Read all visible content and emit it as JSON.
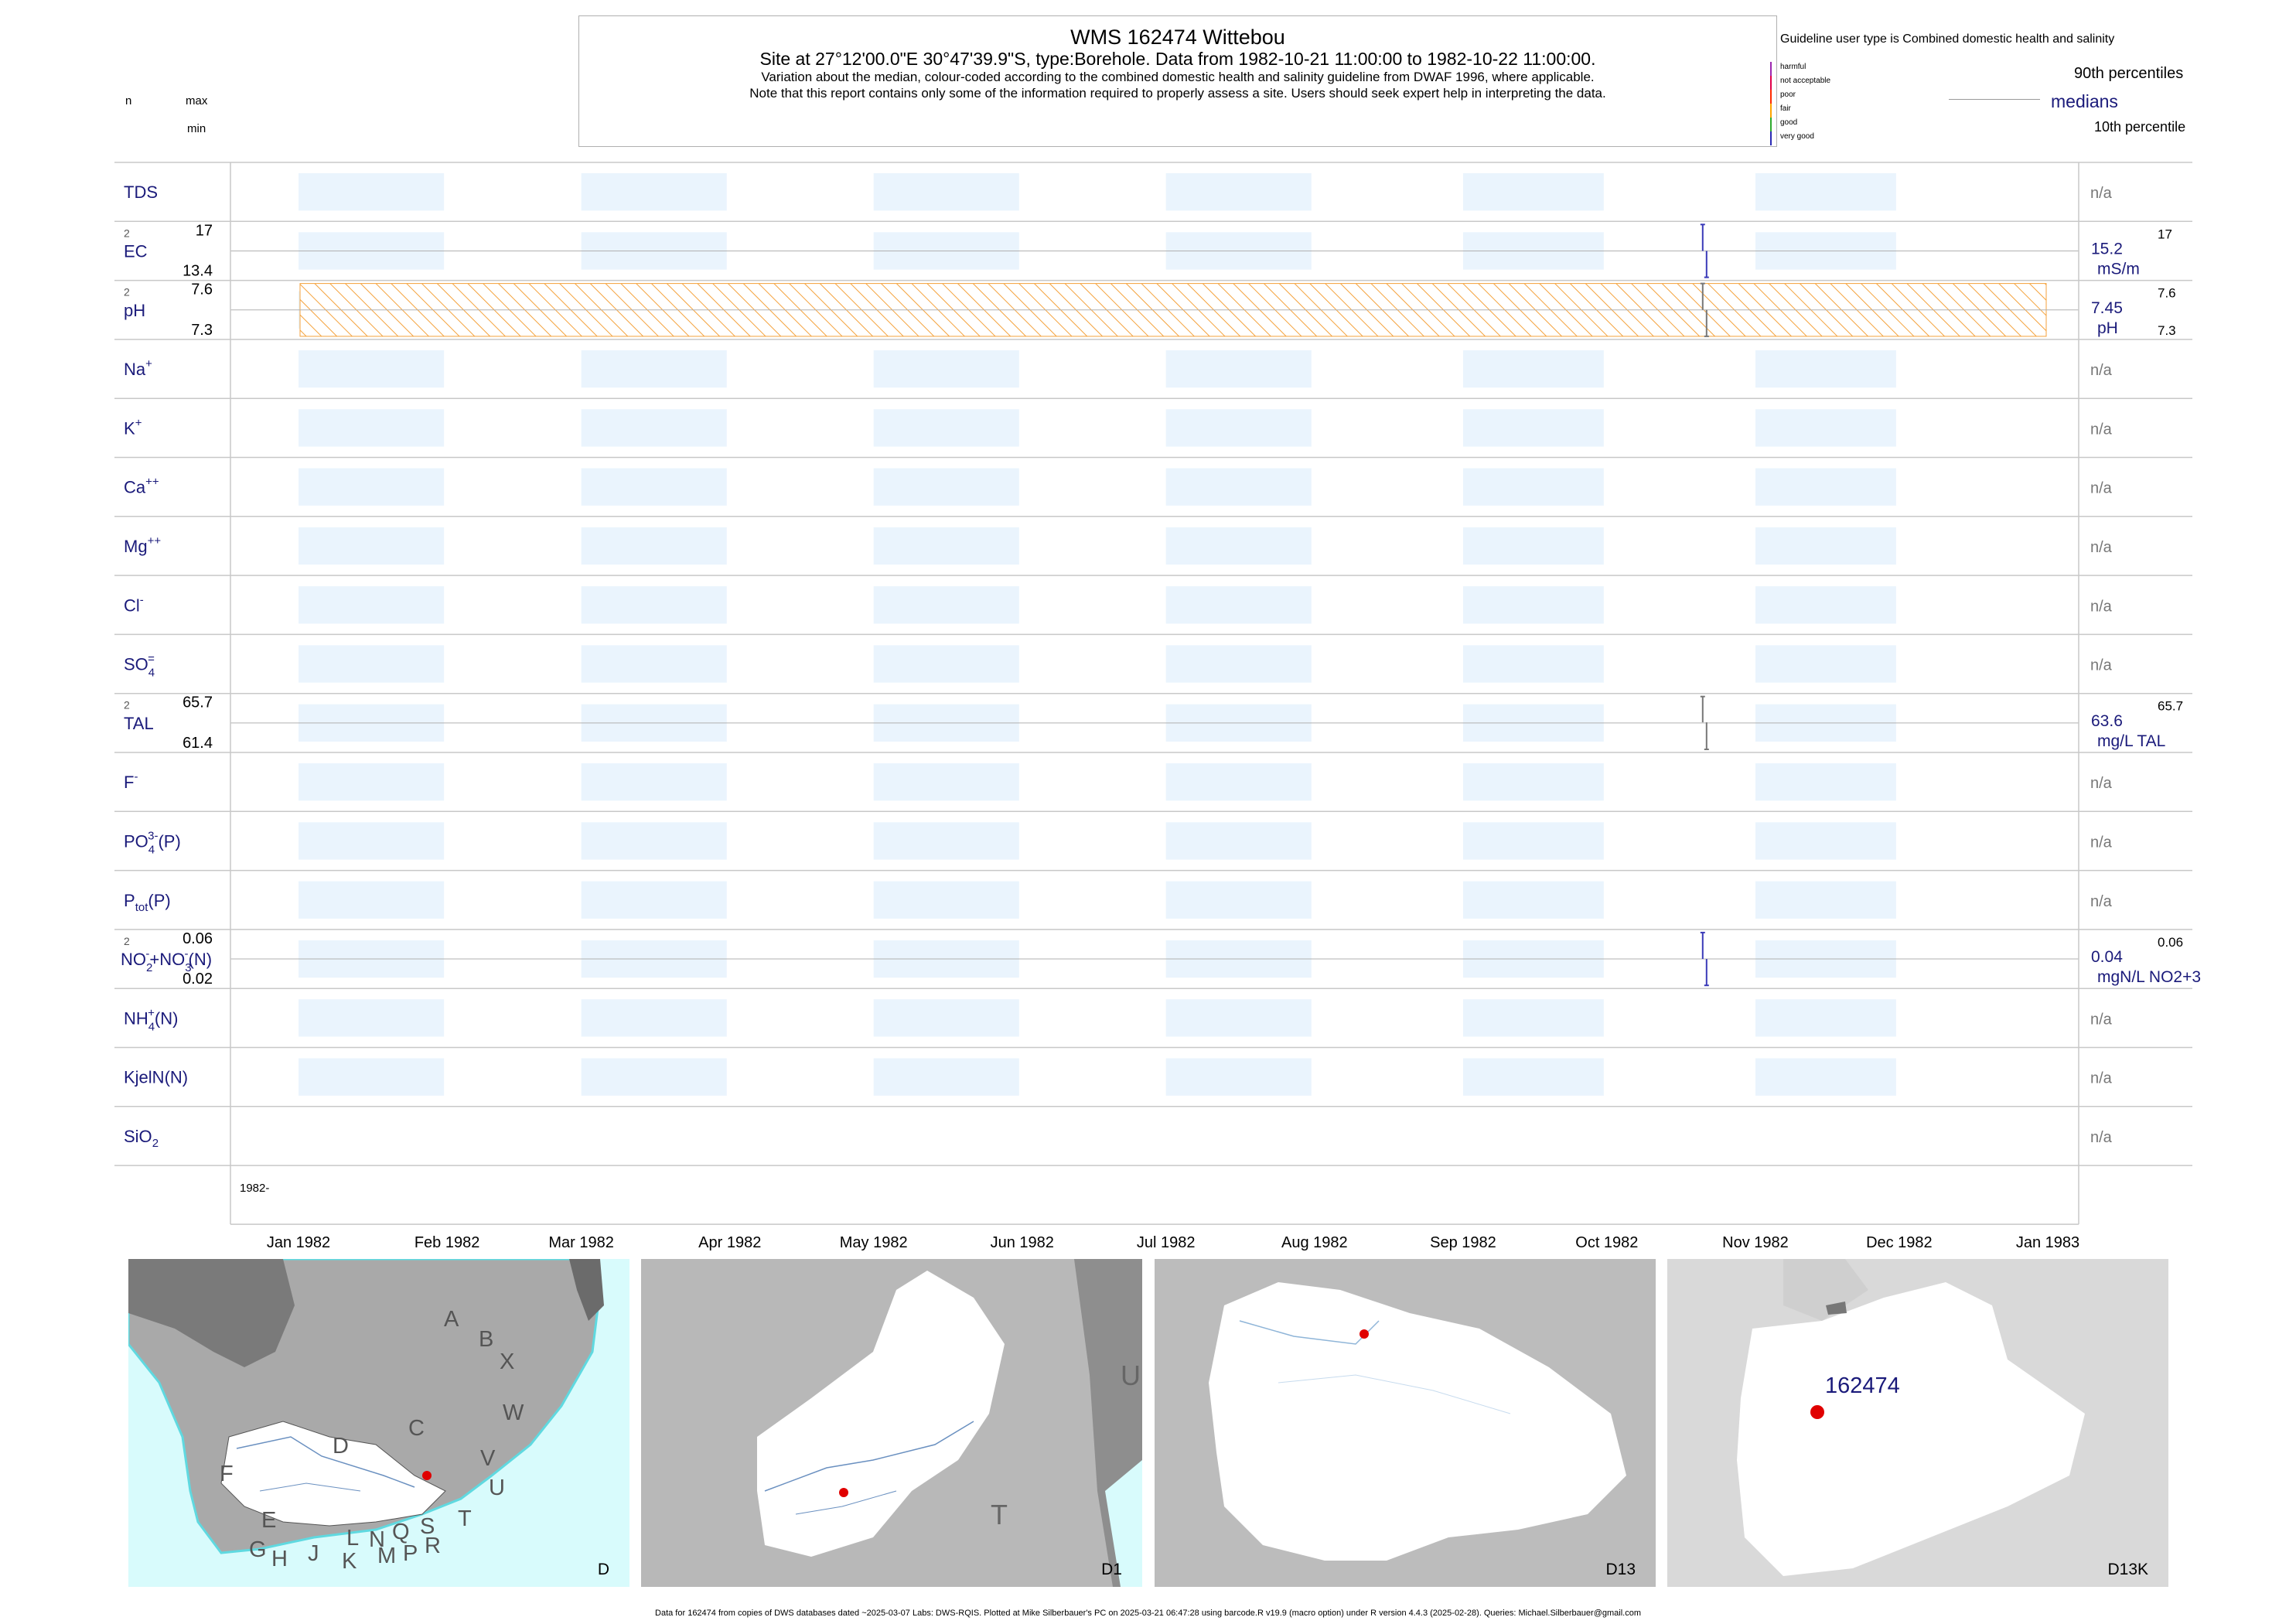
{
  "header": {
    "title": "WMS 162474  Wittebou",
    "subtitle": "Site at 27°12'00.0\"E 30°47'39.9\"S, type:Borehole.  Data from 1982-10-21 11:00:00 to 1982-10-22 11:00:00.",
    "note1": "Variation about the median,  colour-coded according to the combined domestic health and salinity guideline from DWAF 1996, where applicable.",
    "note2": "Note that this report contains only some of the information required to properly assess a site. Users should seek expert help in interpreting the data."
  },
  "top_left_legend": {
    "n": "n",
    "max": "max",
    "min": "min"
  },
  "guideline": {
    "title": "Guideline user type is Combined domestic health and salinity",
    "classes": [
      {
        "label": "harmful",
        "color": "#9c27b0"
      },
      {
        "label": "not acceptable",
        "color": "#e0004a"
      },
      {
        "label": "poor",
        "color": "#ff2a00"
      },
      {
        "label": "fair",
        "color": "#ffa500"
      },
      {
        "label": "good",
        "color": "#2eaa2e"
      },
      {
        "label": "very good",
        "color": "#2a2ab4"
      }
    ],
    "p90": "90th percentiles",
    "medians": "medians",
    "p10": "10th percentile"
  },
  "chart_data": {
    "type": "box-timeseries",
    "x_start": "1982-01-01",
    "x_end": "1983-01-01",
    "x_tick_labels": [
      "Jan 1982",
      "Feb 1982",
      "Mar 1982",
      "Apr 1982",
      "May 1982",
      "Jun 1982",
      "Jul 1982",
      "Aug 1982",
      "Sep 1982",
      "Oct 1982",
      "Nov 1982",
      "Dec 1982",
      "Jan 1983"
    ],
    "year_label": "1982-",
    "sample_date": "1982-10-21",
    "na_label": "n/a",
    "params": [
      {
        "key": "tds",
        "label": "TDS",
        "na": true
      },
      {
        "key": "ec",
        "label": "EC",
        "n": "2",
        "max": "17",
        "min": "13.4",
        "median": "15.2",
        "unit": "mS/m",
        "p90": "17",
        "ymin": 13.4,
        "ymax": 17,
        "values": [
          17,
          13.4
        ],
        "med": 15.2,
        "colors": [
          "#3a3ab8",
          "#3a3ab8"
        ]
      },
      {
        "key": "ph",
        "label": "pH",
        "n": "2",
        "max": "7.6",
        "min": "7.3",
        "median": "7.45",
        "unit": "pH",
        "p90": "7.6",
        "p10": "7.3",
        "ymin": 7.3,
        "ymax": 7.6,
        "values": [
          7.6,
          7.3
        ],
        "med": 7.45,
        "hatched": true,
        "colors": [
          "#777777",
          "#777777"
        ]
      },
      {
        "key": "na",
        "label": "Na+",
        "na": true
      },
      {
        "key": "k",
        "label": "K+",
        "na": true
      },
      {
        "key": "ca",
        "label": "Ca++",
        "na": true
      },
      {
        "key": "mg",
        "label": "Mg++",
        "na": true
      },
      {
        "key": "cl",
        "label": "Cl-",
        "na": true
      },
      {
        "key": "so4",
        "label": "SO4=",
        "na": true
      },
      {
        "key": "tal",
        "label": "TAL",
        "n": "2",
        "max": "65.7",
        "min": "61.4",
        "median": "63.6",
        "unit": "mg/L TAL",
        "p90": "65.7",
        "ymin": 61.4,
        "ymax": 65.7,
        "values": [
          65.7,
          61.4
        ],
        "med": 63.6,
        "colors": [
          "#777777",
          "#777777"
        ]
      },
      {
        "key": "f",
        "label": "F-",
        "na": true
      },
      {
        "key": "po4",
        "label": "PO4(3-)(P)",
        "na": true
      },
      {
        "key": "ptot",
        "label": "Ptot(P)",
        "na": true
      },
      {
        "key": "no",
        "label": "NO2-+NO3-(N)",
        "n": "2",
        "max": "0.06",
        "min": "0.02",
        "median": "0.04",
        "unit": "mgN/L NO2+3",
        "p90": "0.06",
        "ymin": 0.02,
        "ymax": 0.06,
        "values": [
          0.06,
          0.02
        ],
        "med": 0.04,
        "colors": [
          "#3a3ab8",
          "#3a3ab8"
        ]
      },
      {
        "key": "nh4",
        "label": "NH4+(N)",
        "na": true
      },
      {
        "key": "kjel",
        "label": "KjelN(N)",
        "na": true
      },
      {
        "key": "sio2",
        "label": "SiO2",
        "na": true
      }
    ]
  },
  "maps": [
    {
      "code": "D",
      "labels": [
        "A",
        "B",
        "X",
        "C",
        "W",
        "D",
        "V",
        "U",
        "F",
        "E",
        "T",
        "L",
        "N",
        "Q",
        "S",
        "R",
        "G",
        "H",
        "J",
        "K",
        "M",
        "P"
      ]
    },
    {
      "code": "D1",
      "labels": [
        "U",
        "T"
      ]
    },
    {
      "code": "D13",
      "labels": []
    },
    {
      "code": "D13K",
      "site_label": "162474"
    }
  ],
  "footer": "Data for 162474 from copies of DWS databases dated ~2025-03-07 Labs: DWS-RQIS. Plotted at Mike Silberbauer's PC on 2025-03-21 06:47:28 using barcode.R v19.9 (macro option) under R version 4.4.3 (2025-02-28). Queries: Michael.Silberbauer@gmail.com"
}
